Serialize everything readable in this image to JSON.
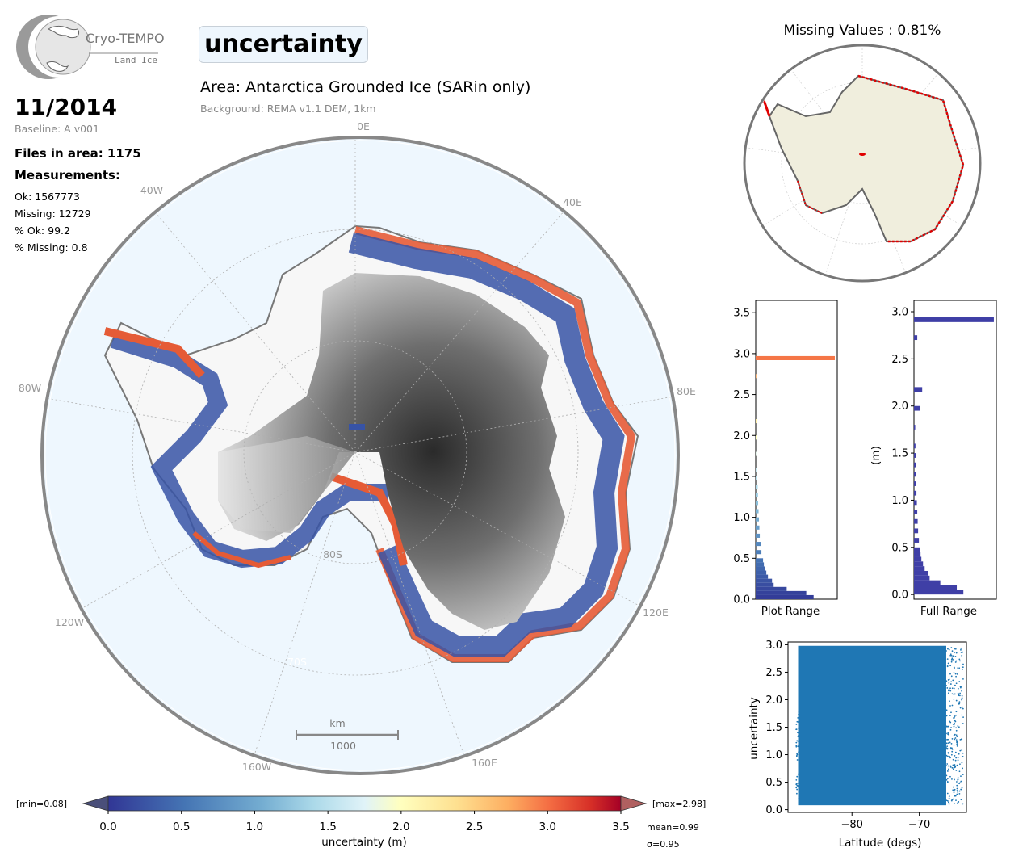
{
  "logo": {
    "name": "Cryo-TEMPO",
    "subtitle": "Land Ice"
  },
  "parameter_title": "uncertainty",
  "date": "11/2014",
  "baseline": "Baseline: A v001",
  "files_in_area": "Files in area: 1175",
  "measurements_heading": "Measurements:",
  "stats": {
    "ok": "Ok: 1567773",
    "missing": "Missing: 12729",
    "pct_ok": "% Ok: 99.2",
    "pct_missing": "% Missing: 0.8"
  },
  "area_title": "Area: Antarctica Grounded Ice (SARin only)",
  "background_note": "Background: REMA v1.1 DEM, 1km",
  "map_labels": {
    "lon_0": "0E",
    "lon_40w": "40W",
    "lon_40e": "40E",
    "lon_80w": "80W",
    "lon_80e": "80E",
    "lon_120w": "120W",
    "lon_120e": "120E",
    "lon_160w": "160W",
    "lon_160e": "160E",
    "lat_80s": "80S",
    "lat_70s": "70S"
  },
  "scale_bar": {
    "unit": "km",
    "value": "1000"
  },
  "missing_map_title": "Missing Values : 0.81%",
  "colors": {
    "ocean": "#eef7fe",
    "land": "#f0eedd",
    "missing": "#e00000",
    "hist_full": "#3f3fa6",
    "scatter": "#1f77b4"
  },
  "colorbar": {
    "label": "uncertainty (m)",
    "min_label": "[min=0.08]",
    "max_label": "[max=2.98]",
    "mean_label": "mean=0.99",
    "sigma_label": "σ=0.95",
    "ticks": [
      "0.0",
      "0.5",
      "1.0",
      "1.5",
      "2.0",
      "2.5",
      "3.0",
      "3.5"
    ],
    "range": [
      0,
      3.5
    ]
  },
  "chart_data": [
    {
      "type": "bar",
      "orientation": "horizontal",
      "xlabel": "Plot Range",
      "ylim": [
        0,
        3.65
      ],
      "yticks": [
        "0.0",
        "0.5",
        "1.0",
        "1.5",
        "2.0",
        "2.5",
        "3.0",
        "3.5"
      ],
      "bins": [
        0.05,
        0.1,
        0.15,
        0.2,
        0.25,
        0.3,
        0.35,
        0.4,
        0.45,
        0.5,
        0.6,
        0.7,
        0.8,
        0.9,
        1.0,
        1.1,
        1.2,
        1.3,
        1.4,
        1.5,
        1.6,
        1.8,
        2.0,
        2.2,
        2.75,
        2.97
      ],
      "values": [
        0.71,
        0.62,
        0.38,
        0.22,
        0.2,
        0.15,
        0.13,
        0.11,
        0.1,
        0.09,
        0.07,
        0.06,
        0.05,
        0.045,
        0.04,
        0.035,
        0.03,
        0.028,
        0.025,
        0.02,
        0.018,
        0.012,
        0.01,
        0.015,
        0.008,
        0.97
      ]
    },
    {
      "type": "bar",
      "orientation": "horizontal",
      "xlabel": "Full Range",
      "ylabel": "(m)",
      "ylim": [
        -0.05,
        3.12
      ],
      "yticks": [
        "0.0",
        "0.5",
        "1.0",
        "1.5",
        "2.0",
        "2.5",
        "3.0"
      ],
      "bins": [
        0.05,
        0.1,
        0.15,
        0.2,
        0.25,
        0.3,
        0.35,
        0.4,
        0.45,
        0.5,
        0.6,
        0.7,
        0.8,
        0.9,
        1.0,
        1.1,
        1.2,
        1.3,
        1.4,
        1.5,
        1.6,
        1.8,
        2.0,
        2.2,
        2.75,
        2.94
      ],
      "values": [
        0.6,
        0.52,
        0.32,
        0.19,
        0.17,
        0.13,
        0.11,
        0.09,
        0.08,
        0.07,
        0.06,
        0.05,
        0.045,
        0.04,
        0.035,
        0.03,
        0.028,
        0.025,
        0.022,
        0.02,
        0.018,
        0.015,
        0.07,
        0.1,
        0.04,
        0.97
      ]
    },
    {
      "type": "scatter",
      "xlabel": "Latitude (degs)",
      "ylabel": "uncertainty",
      "xlim": [
        -89.5,
        -63
      ],
      "ylim": [
        -0.05,
        3.05
      ],
      "xticks": [
        "−80",
        "−70"
      ],
      "yticks": [
        "0.0",
        "0.5",
        "1.0",
        "1.5",
        "2.0",
        "2.5",
        "3.0"
      ],
      "dense_region": {
        "lat_range": [
          -88,
          -66
        ],
        "value_range": [
          0.08,
          2.98
        ]
      }
    }
  ]
}
